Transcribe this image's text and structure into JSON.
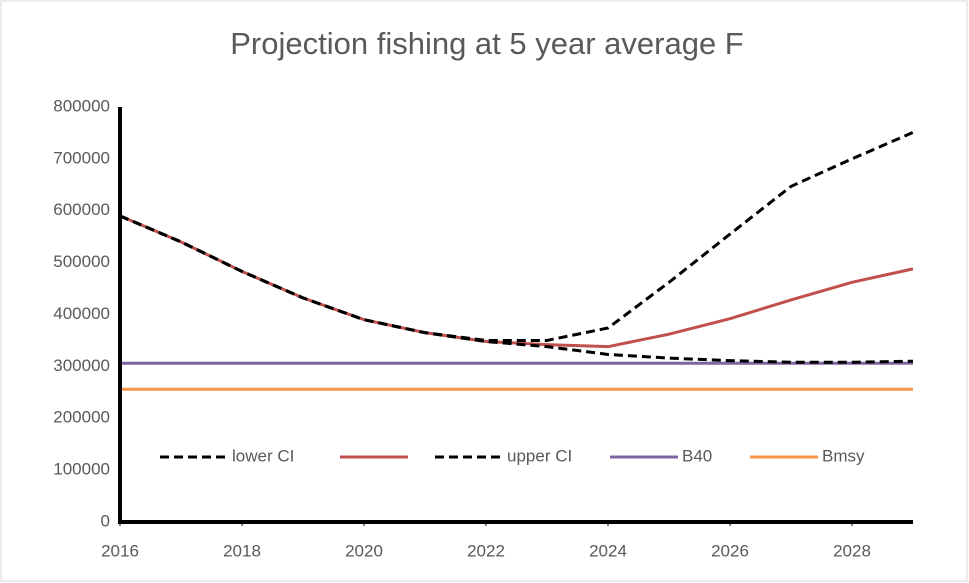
{
  "chart_data": {
    "type": "line",
    "title": "Projection fishing at 5 year average F",
    "x": [
      2016,
      2017,
      2018,
      2019,
      2020,
      2021,
      2022,
      2023,
      2024,
      2025,
      2026,
      2027,
      2028,
      2029
    ],
    "series": [
      {
        "name": "lower CI",
        "color": "#000000",
        "dashed": true,
        "values": [
          590000,
          540000,
          483000,
          432000,
          390000,
          365000,
          348000,
          338000,
          323000,
          316000,
          311000,
          308000,
          308000,
          310000
        ]
      },
      {
        "color": "#c0504d",
        "dashed": false,
        "values": [
          590000,
          540000,
          483000,
          432000,
          390000,
          365000,
          348000,
          342000,
          338000,
          362000,
          392000,
          428000,
          462000,
          488000
        ]
      },
      {
        "name": "upper CI",
        "color": "#000000",
        "dashed": true,
        "values": [
          590000,
          540000,
          483000,
          432000,
          390000,
          365000,
          350000,
          350000,
          374000,
          462000,
          555000,
          647000,
          700000,
          751000
        ]
      },
      {
        "name": "B40",
        "color": "#8064a2",
        "dashed": false,
        "values": [
          306000,
          306000,
          306000,
          306000,
          306000,
          306000,
          306000,
          306000,
          306000,
          306000,
          306000,
          306000,
          306000,
          306000
        ]
      },
      {
        "name": "Bmsy",
        "color": "#f79646",
        "dashed": false,
        "values": [
          256000,
          256000,
          256000,
          256000,
          256000,
          256000,
          256000,
          256000,
          256000,
          256000,
          256000,
          256000,
          256000,
          256000
        ]
      }
    ],
    "xlim": [
      2016,
      2029
    ],
    "xticks": [
      2016,
      2018,
      2020,
      2022,
      2024,
      2026,
      2028
    ],
    "ylim": [
      0,
      800000
    ],
    "yticks": [
      0,
      100000,
      200000,
      300000,
      400000,
      500000,
      600000,
      700000,
      800000
    ],
    "grid": false,
    "legend": "bottom"
  }
}
